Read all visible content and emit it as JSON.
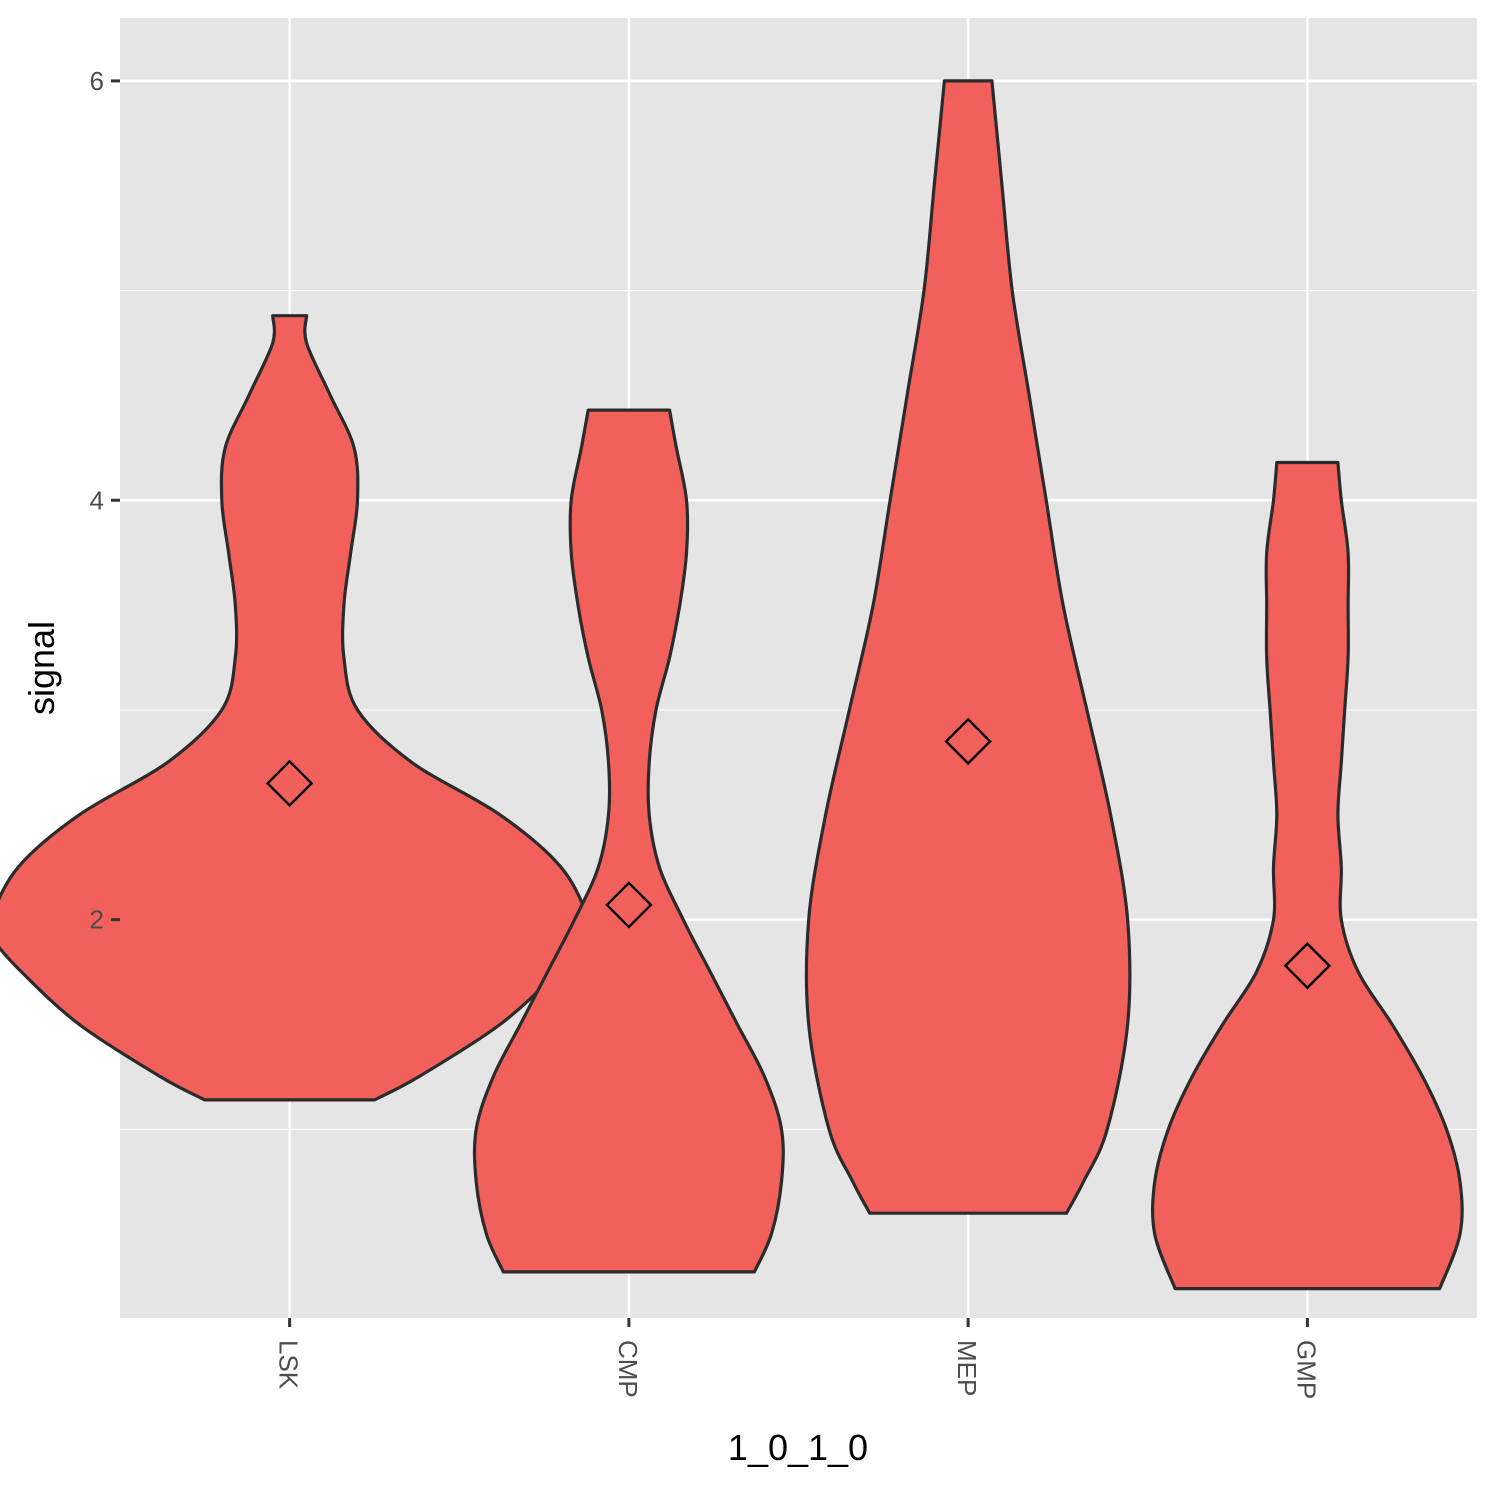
{
  "chart_data": {
    "type": "violin",
    "xlabel": "1_0_1_0",
    "ylabel": "signal",
    "categories": [
      "LSK",
      "CMP",
      "MEP",
      "GMP"
    ],
    "ylim": [
      0.1,
      6.3
    ],
    "yticks": [
      2,
      4,
      6
    ],
    "y_minor_ticks": [
      1,
      3,
      5
    ],
    "grid": true,
    "fill_color": "#f2605c",
    "outline_color": "#2b2b2b",
    "panel_color": "#e5e5e5",
    "mean_marker": "diamond",
    "violins": [
      {
        "category": "LSK",
        "min": 1.14,
        "max": 4.88,
        "mean": 2.65,
        "profile": [
          [
            1.14,
            0.25
          ],
          [
            1.25,
            0.38
          ],
          [
            1.5,
            0.62
          ],
          [
            1.75,
            0.79
          ],
          [
            1.9,
            0.87
          ],
          [
            2.0,
            0.88
          ],
          [
            2.25,
            0.8
          ],
          [
            2.5,
            0.62
          ],
          [
            2.75,
            0.36
          ],
          [
            3.0,
            0.2
          ],
          [
            3.25,
            0.16
          ],
          [
            3.5,
            0.16
          ],
          [
            3.75,
            0.18
          ],
          [
            4.0,
            0.2
          ],
          [
            4.25,
            0.19
          ],
          [
            4.5,
            0.12
          ],
          [
            4.75,
            0.05
          ],
          [
            4.88,
            0.05
          ]
        ]
      },
      {
        "category": "CMP",
        "min": 0.32,
        "max": 4.43,
        "mean": 2.07,
        "profile": [
          [
            0.32,
            0.37
          ],
          [
            0.5,
            0.42
          ],
          [
            0.75,
            0.45
          ],
          [
            1.0,
            0.45
          ],
          [
            1.25,
            0.4
          ],
          [
            1.5,
            0.32
          ],
          [
            1.75,
            0.24
          ],
          [
            2.0,
            0.16
          ],
          [
            2.25,
            0.09
          ],
          [
            2.5,
            0.06
          ],
          [
            2.75,
            0.06
          ],
          [
            3.0,
            0.08
          ],
          [
            3.25,
            0.12
          ],
          [
            3.5,
            0.15
          ],
          [
            3.75,
            0.17
          ],
          [
            4.0,
            0.17
          ],
          [
            4.25,
            0.14
          ],
          [
            4.43,
            0.12
          ]
        ]
      },
      {
        "category": "MEP",
        "min": 0.6,
        "max": 6.0,
        "mean": 2.85,
        "profile": [
          [
            0.6,
            0.29
          ],
          [
            0.75,
            0.34
          ],
          [
            1.0,
            0.41
          ],
          [
            1.5,
            0.47
          ],
          [
            2.0,
            0.47
          ],
          [
            2.5,
            0.42
          ],
          [
            3.0,
            0.35
          ],
          [
            3.5,
            0.28
          ],
          [
            4.0,
            0.23
          ],
          [
            4.5,
            0.18
          ],
          [
            5.0,
            0.13
          ],
          [
            5.5,
            0.1
          ],
          [
            6.0,
            0.07
          ]
        ]
      },
      {
        "category": "GMP",
        "min": 0.24,
        "max": 4.18,
        "mean": 1.78,
        "profile": [
          [
            0.24,
            0.39
          ],
          [
            0.5,
            0.45
          ],
          [
            0.75,
            0.45
          ],
          [
            1.0,
            0.41
          ],
          [
            1.25,
            0.34
          ],
          [
            1.5,
            0.25
          ],
          [
            1.75,
            0.15
          ],
          [
            2.0,
            0.1
          ],
          [
            2.25,
            0.1
          ],
          [
            2.5,
            0.09
          ],
          [
            2.75,
            0.1
          ],
          [
            3.0,
            0.11
          ],
          [
            3.25,
            0.12
          ],
          [
            3.5,
            0.12
          ],
          [
            3.75,
            0.12
          ],
          [
            4.0,
            0.1
          ],
          [
            4.18,
            0.09
          ]
        ]
      }
    ]
  }
}
